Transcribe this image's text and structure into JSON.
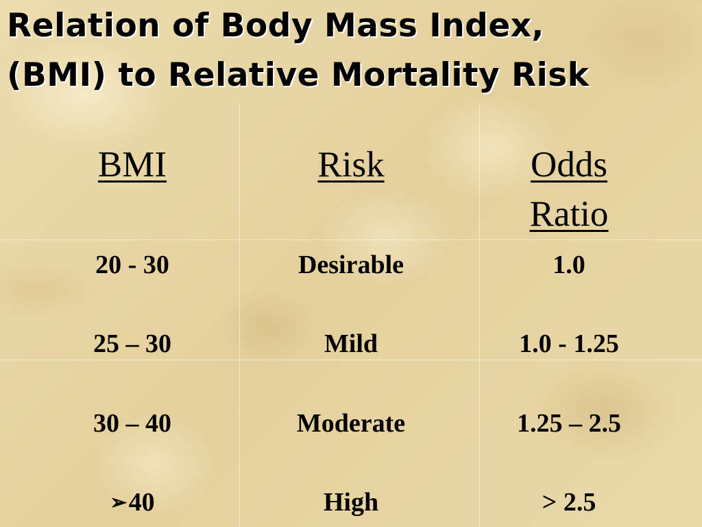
{
  "slide": {
    "title_line1": "Relation of Body Mass Index,",
    "title_line2": "(BMI) to Relative Mortality Risk"
  },
  "table": {
    "headers": {
      "bmi": "BMI",
      "risk": "Risk",
      "odds_line1": "Odds",
      "odds_line2": "Ratio"
    },
    "rows": [
      {
        "bmi": "20 - 30",
        "risk": "Desirable",
        "odds": "1.0"
      },
      {
        "bmi": "25 – 30",
        "risk": "Mild",
        "odds": "1.0 - 1.25"
      },
      {
        "bmi": "30 – 40",
        "risk": "Moderate",
        "odds": "1.25 – 2.5"
      },
      {
        "bmi": "40",
        "bullet_icon": "arrow-bullet-icon",
        "risk": "High",
        "odds": "> 2.5"
      }
    ]
  }
}
